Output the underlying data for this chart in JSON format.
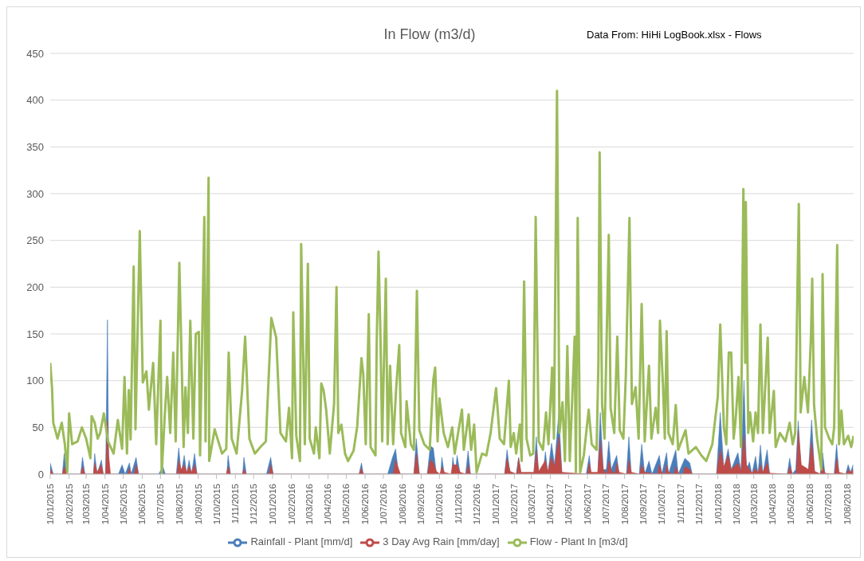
{
  "chart_data": {
    "type": "line",
    "title": "In Flow (m3/d)",
    "annotations": [
      "Data From: HiHi LogBook.xlsx - Flows"
    ],
    "xlim": [
      "2015-01-01",
      "2018-08-12"
    ],
    "xticks": [
      {
        "value": "2015-01-01",
        "label": "1/01/2015"
      },
      {
        "value": "2015-02-01",
        "label": "1/02/2015"
      },
      {
        "value": "2015-03-01",
        "label": "1/03/2015"
      },
      {
        "value": "2015-04-01",
        "label": "1/04/2015"
      },
      {
        "value": "2015-05-01",
        "label": "1/05/2015"
      },
      {
        "value": "2015-06-01",
        "label": "1/06/2015"
      },
      {
        "value": "2015-07-01",
        "label": "1/07/2015"
      },
      {
        "value": "2015-08-01",
        "label": "1/08/2015"
      },
      {
        "value": "2015-09-01",
        "label": "1/09/2015"
      },
      {
        "value": "2015-10-01",
        "label": "1/10/2015"
      },
      {
        "value": "2015-11-01",
        "label": "1/11/2015"
      },
      {
        "value": "2015-12-01",
        "label": "1/12/2015"
      },
      {
        "value": "2016-01-01",
        "label": "1/01/2016"
      },
      {
        "value": "2016-02-01",
        "label": "1/02/2016"
      },
      {
        "value": "2016-03-01",
        "label": "1/03/2016"
      },
      {
        "value": "2016-04-01",
        "label": "1/04/2016"
      },
      {
        "value": "2016-05-01",
        "label": "1/05/2016"
      },
      {
        "value": "2016-06-01",
        "label": "1/06/2016"
      },
      {
        "value": "2016-07-01",
        "label": "1/07/2016"
      },
      {
        "value": "2016-08-01",
        "label": "1/08/2016"
      },
      {
        "value": "2016-09-01",
        "label": "1/09/2016"
      },
      {
        "value": "2016-10-01",
        "label": "1/10/2016"
      },
      {
        "value": "2016-11-01",
        "label": "1/11/2016"
      },
      {
        "value": "2016-12-01",
        "label": "1/12/2016"
      },
      {
        "value": "2017-01-01",
        "label": "1/01/2017"
      },
      {
        "value": "2017-02-01",
        "label": "1/02/2017"
      },
      {
        "value": "2017-03-01",
        "label": "1/03/2017"
      },
      {
        "value": "2017-04-01",
        "label": "1/04/2017"
      },
      {
        "value": "2017-05-01",
        "label": "1/05/2017"
      },
      {
        "value": "2017-06-01",
        "label": "1/06/2017"
      },
      {
        "value": "2017-07-01",
        "label": "1/07/2017"
      },
      {
        "value": "2017-08-01",
        "label": "1/08/2017"
      },
      {
        "value": "2017-09-01",
        "label": "1/09/2017"
      },
      {
        "value": "2017-10-01",
        "label": "1/10/2017"
      },
      {
        "value": "2017-11-01",
        "label": "1/11/2017"
      },
      {
        "value": "2017-12-01",
        "label": "1/12/2017"
      },
      {
        "value": "2018-01-01",
        "label": "1/01/2018"
      },
      {
        "value": "2018-02-01",
        "label": "1/02/2018"
      },
      {
        "value": "2018-03-01",
        "label": "1/03/2018"
      },
      {
        "value": "2018-04-01",
        "label": "1/04/2018"
      },
      {
        "value": "2018-05-01",
        "label": "1/05/2018"
      },
      {
        "value": "2018-06-01",
        "label": "1/06/2018"
      },
      {
        "value": "2018-07-01",
        "label": "1/07/2018"
      },
      {
        "value": "2018-08-01",
        "label": "1/08/2018"
      }
    ],
    "ylim": [
      0,
      450
    ],
    "yticks": [
      0,
      50,
      100,
      150,
      200,
      250,
      300,
      350,
      400,
      450
    ],
    "grid": "y",
    "legend": "bottom",
    "marker": "none",
    "line_style": "solid",
    "series": [
      {
        "name": "Rainfall - Plant [mm/d]",
        "type": "area",
        "color": "#4a7ebb",
        "x": [
          "2015-01-01",
          "2015-01-06",
          "2015-01-21",
          "2015-01-24",
          "2015-01-28",
          "2015-02-20",
          "2015-02-23",
          "2015-02-27",
          "2015-03-13",
          "2015-03-15",
          "2015-03-19",
          "2015-03-26",
          "2015-03-29",
          "2015-04-02",
          "2015-04-05",
          "2015-04-07",
          "2015-04-23",
          "2015-04-29",
          "2015-05-04",
          "2015-05-11",
          "2015-05-14",
          "2015-05-22",
          "2015-05-26",
          "2015-06-28",
          "2015-07-05",
          "2015-07-09",
          "2015-07-27",
          "2015-07-31",
          "2015-08-04",
          "2015-08-09",
          "2015-08-13",
          "2015-08-17",
          "2015-08-21",
          "2015-08-26",
          "2015-08-30",
          "2015-10-18",
          "2015-10-20",
          "2015-10-24",
          "2015-11-13",
          "2015-11-15",
          "2015-11-19",
          "2015-12-22",
          "2015-12-29",
          "2016-01-02",
          "2016-05-22",
          "2016-05-26",
          "2016-05-29",
          "2016-07-08",
          "2016-07-16",
          "2016-07-21",
          "2016-07-25",
          "2016-07-29",
          "2016-08-20",
          "2016-08-24",
          "2016-08-29",
          "2016-09-11",
          "2016-09-16",
          "2016-09-21",
          "2016-09-26",
          "2016-10-03",
          "2016-10-05",
          "2016-10-09",
          "2016-10-21",
          "2016-10-23",
          "2016-10-27",
          "2016-10-30",
          "2016-11-04",
          "2016-11-13",
          "2016-11-17",
          "2016-11-21",
          "2017-01-16",
          "2017-01-20",
          "2017-01-25",
          "2017-02-04",
          "2017-02-08",
          "2017-02-12",
          "2017-03-05",
          "2017-03-09",
          "2017-03-13",
          "2017-03-20",
          "2017-03-24",
          "2017-03-28",
          "2017-04-03",
          "2017-04-08",
          "2017-04-15",
          "2017-04-20",
          "2017-05-30",
          "2017-06-04",
          "2017-06-07",
          "2017-06-18",
          "2017-06-22",
          "2017-06-27",
          "2017-07-02",
          "2017-07-06",
          "2017-07-10",
          "2017-07-19",
          "2017-07-23",
          "2017-08-04",
          "2017-08-08",
          "2017-08-12",
          "2017-08-25",
          "2017-08-29",
          "2017-09-03",
          "2017-09-10",
          "2017-09-15",
          "2017-09-27",
          "2017-10-01",
          "2017-10-09",
          "2017-10-12",
          "2017-10-24",
          "2017-10-28",
          "2017-11-08",
          "2017-11-16",
          "2017-11-20",
          "2017-12-30",
          "2018-01-05",
          "2018-01-11",
          "2018-01-18",
          "2018-01-23",
          "2018-02-03",
          "2018-02-08",
          "2018-02-13",
          "2018-02-17",
          "2018-02-22",
          "2018-02-26",
          "2018-03-04",
          "2018-03-08",
          "2018-03-12",
          "2018-03-16",
          "2018-03-23",
          "2018-03-27",
          "2018-04-25",
          "2018-04-29",
          "2018-05-03",
          "2018-05-09",
          "2018-05-13",
          "2018-05-18",
          "2018-05-30",
          "2018-06-04",
          "2018-06-09",
          "2018-06-18",
          "2018-06-22",
          "2018-06-26",
          "2018-07-11",
          "2018-07-15",
          "2018-07-19",
          "2018-07-30",
          "2018-08-03",
          "2018-08-07",
          "2018-08-11"
        ],
        "values": [
          12,
          0,
          0,
          22,
          0,
          0,
          18,
          0,
          0,
          22,
          0,
          15,
          0,
          0,
          165,
          0,
          0,
          10,
          0,
          12,
          0,
          18,
          0,
          0,
          8,
          0,
          0,
          28,
          0,
          20,
          0,
          15,
          0,
          22,
          0,
          0,
          20,
          0,
          0,
          18,
          0,
          0,
          18,
          0,
          0,
          12,
          0,
          0,
          18,
          27,
          5,
          0,
          0,
          38,
          0,
          0,
          30,
          28,
          0,
          0,
          18,
          0,
          0,
          18,
          0,
          20,
          0,
          0,
          25,
          0,
          0,
          26,
          0,
          0,
          18,
          0,
          0,
          40,
          0,
          0,
          24,
          0,
          33,
          10,
          66,
          0,
          0,
          20,
          0,
          0,
          66,
          5,
          5,
          35,
          5,
          20,
          0,
          0,
          40,
          0,
          0,
          32,
          0,
          14,
          0,
          20,
          0,
          23,
          0,
          26,
          0,
          17,
          12,
          0,
          0,
          66,
          5,
          27,
          5,
          23,
          3,
          100,
          5,
          13,
          0,
          19,
          0,
          31,
          0,
          26,
          0,
          0,
          17,
          0,
          5,
          57,
          5,
          5,
          58,
          0,
          0,
          23,
          0,
          0,
          32,
          0,
          0,
          10,
          2,
          10
        ]
      },
      {
        "name": "3 Day Avg Rain [mm/day]",
        "type": "area",
        "color": "#be4b48",
        "x": [
          "2015-01-01",
          "2015-01-06",
          "2015-01-21",
          "2015-01-24",
          "2015-01-28",
          "2015-02-20",
          "2015-02-23",
          "2015-02-27",
          "2015-03-13",
          "2015-03-15",
          "2015-03-19",
          "2015-03-26",
          "2015-03-29",
          "2015-04-02",
          "2015-04-05",
          "2015-04-07",
          "2015-04-10",
          "2015-05-08",
          "2015-05-11",
          "2015-05-14",
          "2015-05-19",
          "2015-05-22",
          "2015-05-26",
          "2015-07-28",
          "2015-07-31",
          "2015-08-04",
          "2015-08-09",
          "2015-08-13",
          "2015-08-17",
          "2015-08-21",
          "2015-08-26",
          "2015-08-30",
          "2015-10-17",
          "2015-10-20",
          "2015-10-24",
          "2015-11-12",
          "2015-11-15",
          "2015-11-19",
          "2015-12-26",
          "2015-12-29",
          "2016-01-02",
          "2016-05-22",
          "2016-05-26",
          "2016-05-29",
          "2016-07-17",
          "2016-07-21",
          "2016-07-29",
          "2016-08-20",
          "2016-08-24",
          "2016-08-29",
          "2016-09-11",
          "2016-09-16",
          "2016-09-21",
          "2016-09-26",
          "2016-10-02",
          "2016-10-05",
          "2016-10-09",
          "2016-10-20",
          "2016-10-23",
          "2016-10-30",
          "2016-11-04",
          "2016-11-14",
          "2016-11-17",
          "2016-11-21",
          "2017-01-16",
          "2017-01-20",
          "2017-01-25",
          "2017-02-05",
          "2017-02-08",
          "2017-02-12",
          "2017-03-05",
          "2017-03-09",
          "2017-03-13",
          "2017-03-24",
          "2017-03-28",
          "2017-04-03",
          "2017-04-08",
          "2017-04-15",
          "2017-04-20",
          "2017-06-01",
          "2017-06-04",
          "2017-06-07",
          "2017-06-18",
          "2017-06-22",
          "2017-06-27",
          "2017-07-03",
          "2017-07-06",
          "2017-07-10",
          "2017-07-16",
          "2017-07-19",
          "2017-07-23",
          "2017-08-05",
          "2017-08-08",
          "2017-08-12",
          "2017-08-26",
          "2017-08-29",
          "2017-09-03",
          "2017-09-24",
          "2017-09-27",
          "2017-10-01",
          "2017-10-06",
          "2017-10-09",
          "2017-10-12",
          "2017-10-21",
          "2017-10-24",
          "2017-10-28",
          "2017-11-05",
          "2017-11-08",
          "2017-11-16",
          "2017-11-20",
          "2017-12-30",
          "2018-01-05",
          "2018-01-11",
          "2018-01-18",
          "2018-01-23",
          "2018-02-03",
          "2018-02-08",
          "2018-02-13",
          "2018-02-17",
          "2018-02-22",
          "2018-02-26",
          "2018-03-04",
          "2018-03-08",
          "2018-03-12",
          "2018-03-16",
          "2018-03-23",
          "2018-03-27",
          "2018-04-26",
          "2018-04-29",
          "2018-05-03",
          "2018-05-10",
          "2018-05-13",
          "2018-05-18",
          "2018-05-30",
          "2018-06-04",
          "2018-06-09",
          "2018-06-19",
          "2018-06-22",
          "2018-06-26",
          "2018-07-12",
          "2018-07-15",
          "2018-07-19",
          "2018-07-31",
          "2018-08-03",
          "2018-08-07",
          "2018-08-11"
        ],
        "values": [
          5,
          0,
          0,
          8,
          0,
          0,
          8,
          0,
          0,
          12,
          2,
          10,
          0,
          0,
          57,
          20,
          0,
          0,
          6,
          0,
          0,
          10,
          0,
          0,
          15,
          5,
          10,
          2,
          8,
          2,
          10,
          0,
          0,
          8,
          0,
          0,
          5,
          0,
          0,
          10,
          0,
          0,
          6,
          0,
          0,
          15,
          0,
          0,
          22,
          0,
          0,
          15,
          12,
          3,
          0,
          8,
          2,
          0,
          10,
          10,
          2,
          0,
          10,
          0,
          0,
          17,
          3,
          0,
          17,
          2,
          2,
          25,
          3,
          15,
          3,
          18,
          8,
          40,
          2,
          0,
          12,
          2,
          2,
          36,
          5,
          0,
          14,
          4,
          0,
          12,
          2,
          0,
          15,
          2,
          0,
          10,
          2,
          0,
          10,
          2,
          0,
          10,
          2,
          0,
          8,
          1,
          0,
          8,
          5,
          0,
          0,
          26,
          8,
          20,
          5,
          12,
          3,
          42,
          10,
          5,
          1,
          6,
          1,
          10,
          2,
          12,
          1,
          0,
          8,
          1,
          0,
          47,
          10,
          5,
          35,
          3,
          0,
          8,
          1,
          0,
          17,
          2,
          0,
          5,
          2,
          5
        ]
      },
      {
        "name": "Flow - Plant In [m3/d]",
        "color": "#9bbb59",
        "x": [
          "2015-01-01",
          "2015-01-04",
          "2015-01-06",
          "2015-01-13",
          "2015-01-20",
          "2015-01-25",
          "2015-01-29",
          "2015-02-01",
          "2015-02-06",
          "2015-02-15",
          "2015-02-22",
          "2015-03-01",
          "2015-03-08",
          "2015-03-10",
          "2015-03-15",
          "2015-03-20",
          "2015-03-24",
          "2015-03-30",
          "2015-04-06",
          "2015-04-15",
          "2015-04-22",
          "2015-04-29",
          "2015-05-03",
          "2015-05-07",
          "2015-05-10",
          "2015-05-13",
          "2015-05-18",
          "2015-05-21",
          "2015-05-28",
          "2015-06-02",
          "2015-06-08",
          "2015-06-12",
          "2015-06-19",
          "2015-06-24",
          "2015-07-01",
          "2015-07-03",
          "2015-07-08",
          "2015-07-12",
          "2015-07-17",
          "2015-07-22",
          "2015-07-26",
          "2015-08-01",
          "2015-08-08",
          "2015-08-11",
          "2015-08-15",
          "2015-08-19",
          "2015-08-24",
          "2015-08-28",
          "2015-09-02",
          "2015-09-04",
          "2015-09-11",
          "2015-09-13",
          "2015-09-18",
          "2015-09-19",
          "2015-09-28",
          "2015-10-10",
          "2015-10-17",
          "2015-10-21",
          "2015-10-26",
          "2015-11-03",
          "2015-11-12",
          "2015-11-17",
          "2015-11-24",
          "2015-12-03",
          "2015-12-12",
          "2015-12-21",
          "2015-12-30",
          "2016-01-07",
          "2016-01-14",
          "2016-01-23",
          "2016-01-28",
          "2016-02-02",
          "2016-02-04",
          "2016-02-09",
          "2016-02-15",
          "2016-02-17",
          "2016-02-23",
          "2016-02-28",
          "2016-03-02",
          "2016-03-09",
          "2016-03-12",
          "2016-03-18",
          "2016-03-21",
          "2016-03-25",
          "2016-03-29",
          "2016-04-04",
          "2016-04-11",
          "2016-04-15",
          "2016-04-18",
          "2016-04-23",
          "2016-04-29",
          "2016-05-04",
          "2016-05-13",
          "2016-05-19",
          "2016-05-26",
          "2016-05-29",
          "2016-06-02",
          "2016-06-07",
          "2016-06-10",
          "2016-06-18",
          "2016-06-20",
          "2016-06-23",
          "2016-06-26",
          "2016-06-29",
          "2016-07-05",
          "2016-07-08",
          "2016-07-12",
          "2016-07-17",
          "2016-07-22",
          "2016-07-27",
          "2016-07-30",
          "2016-08-06",
          "2016-08-08",
          "2016-08-15",
          "2016-08-20",
          "2016-08-25",
          "2016-08-29",
          "2016-09-06",
          "2016-09-15",
          "2016-09-21",
          "2016-09-24",
          "2016-09-28",
          "2016-10-01",
          "2016-10-08",
          "2016-10-15",
          "2016-10-22",
          "2016-10-26",
          "2016-11-07",
          "2016-11-10",
          "2016-11-18",
          "2016-11-22",
          "2016-11-27",
          "2016-12-01",
          "2016-12-10",
          "2016-12-17",
          "2016-12-24",
          "2017-01-02",
          "2017-01-08",
          "2017-01-15",
          "2017-01-23",
          "2017-01-26",
          "2017-01-31",
          "2017-02-04",
          "2017-02-10",
          "2017-02-13",
          "2017-02-17",
          "2017-02-21",
          "2017-02-27",
          "2017-03-04",
          "2017-03-08",
          "2017-03-13",
          "2017-03-20",
          "2017-03-25",
          "2017-03-29",
          "2017-04-04",
          "2017-04-07",
          "2017-04-12",
          "2017-04-16",
          "2017-04-21",
          "2017-04-25",
          "2017-04-29",
          "2017-05-03",
          "2017-05-11",
          "2017-05-13",
          "2017-05-16",
          "2017-05-20",
          "2017-05-26",
          "2017-06-03",
          "2017-06-08",
          "2017-06-16",
          "2017-06-19",
          "2017-06-21",
          "2017-06-25",
          "2017-06-29",
          "2017-07-02",
          "2017-07-06",
          "2017-07-09",
          "2017-07-15",
          "2017-07-20",
          "2017-07-24",
          "2017-07-30",
          "2017-08-03",
          "2017-08-09",
          "2017-08-13",
          "2017-08-19",
          "2017-08-24",
          "2017-08-29",
          "2017-09-03",
          "2017-09-10",
          "2017-09-14",
          "2017-09-21",
          "2017-09-25",
          "2017-09-28",
          "2017-10-03",
          "2017-10-06",
          "2017-10-09",
          "2017-10-12",
          "2017-10-19",
          "2017-10-24",
          "2017-10-28",
          "2017-11-09",
          "2017-11-14",
          "2017-11-26",
          "2017-12-05",
          "2017-12-13",
          "2017-12-23",
          "2018-01-01",
          "2018-01-05",
          "2018-01-11",
          "2018-01-15",
          "2018-01-19",
          "2018-01-23",
          "2018-01-27",
          "2018-01-30",
          "2018-02-04",
          "2018-02-08",
          "2018-02-12",
          "2018-02-15",
          "2018-02-16",
          "2018-02-20",
          "2018-02-23",
          "2018-02-28",
          "2018-03-04",
          "2018-03-08",
          "2018-03-12",
          "2018-03-16",
          "2018-03-24",
          "2018-03-27",
          "2018-04-03",
          "2018-04-06",
          "2018-04-13",
          "2018-04-22",
          "2018-04-29",
          "2018-05-04",
          "2018-05-08",
          "2018-05-14",
          "2018-05-17",
          "2018-05-23",
          "2018-05-29",
          "2018-06-03",
          "2018-06-05",
          "2018-06-08",
          "2018-06-13",
          "2018-06-20",
          "2018-06-22",
          "2018-06-26",
          "2018-07-03",
          "2018-07-08",
          "2018-07-11",
          "2018-07-16",
          "2018-07-19",
          "2018-07-23",
          "2018-07-27",
          "2018-08-03",
          "2018-08-08",
          "2018-08-12"
        ],
        "values": [
          119,
          92,
          55,
          38,
          55,
          32,
          2,
          65,
          32,
          35,
          50,
          38,
          17,
          62,
          55,
          38,
          44,
          65,
          35,
          22,
          58,
          27,
          104,
          22,
          90,
          37,
          222,
          48,
          260,
          98,
          110,
          69,
          119,
          32,
          164,
          0,
          62,
          104,
          44,
          130,
          35,
          226,
          29,
          93,
          44,
          164,
          38,
          150,
          152,
          20,
          275,
          35,
          317,
          14,
          48,
          22,
          27,
          130,
          38,
          22,
          89,
          147,
          38,
          22,
          29,
          35,
          167,
          146,
          44,
          35,
          71,
          17,
          173,
          41,
          14,
          246,
          32,
          225,
          38,
          22,
          50,
          17,
          97,
          89,
          69,
          22,
          75,
          200,
          44,
          53,
          22,
          14,
          25,
          51,
          124,
          107,
          32,
          171,
          29,
          20,
          140,
          238,
          153,
          35,
          209,
          32,
          116,
          32,
          92,
          138,
          44,
          29,
          78,
          32,
          26,
          196,
          47,
          32,
          26,
          101,
          114,
          35,
          81,
          44,
          29,
          50,
          22,
          69,
          26,
          64,
          26,
          53,
          2,
          22,
          20,
          44,
          92,
          38,
          32,
          100,
          29,
          44,
          22,
          53,
          14,
          206,
          38,
          20,
          22,
          275,
          35,
          26,
          66,
          32,
          114,
          38,
          410,
          44,
          77,
          14,
          137,
          14,
          147,
          2,
          274,
          2,
          20,
          69,
          32,
          26,
          119,
          344,
          75,
          38,
          128,
          256,
          71,
          44,
          147,
          47,
          38,
          105,
          274,
          75,
          93,
          38,
          182,
          35,
          116,
          38,
          71,
          44,
          164,
          95,
          38,
          153,
          44,
          32,
          74,
          26,
          47,
          22,
          29,
          20,
          14,
          32,
          83,
          160,
          50,
          32,
          130,
          130,
          38,
          56,
          104,
          29,
          305,
          119,
          291,
          44,
          66,
          35,
          66,
          44,
          160,
          44,
          146,
          44,
          89,
          29,
          44,
          35,
          55,
          32,
          44,
          289,
          66,
          104,
          66,
          149,
          209,
          74,
          38,
          5,
          214,
          50,
          38,
          32,
          50,
          245,
          32,
          68,
          32,
          41,
          29,
          41
        ]
      }
    ]
  }
}
